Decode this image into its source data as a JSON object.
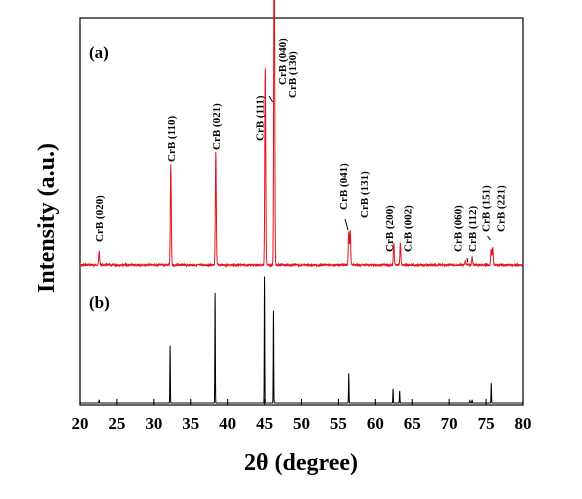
{
  "chart_data": {
    "type": "line",
    "xlabel": "2θ (degree)",
    "ylabel": "Intensity (a.u.)",
    "xlim": [
      20,
      80
    ],
    "x_ticks": [
      20,
      25,
      30,
      35,
      40,
      45,
      50,
      55,
      60,
      65,
      70,
      75,
      80
    ],
    "grid": false,
    "legend": "none",
    "panels": [
      {
        "label": "(a)",
        "color": "#e0141e",
        "description": "experimental diffraction pattern",
        "peaks": [
          {
            "x": 22.6,
            "intensity": 0.07,
            "label": "CrB (020)"
          },
          {
            "x": 32.3,
            "intensity": 0.5,
            "label": "CrB (110)"
          },
          {
            "x": 38.4,
            "intensity": 0.57,
            "label": "CrB (021)"
          },
          {
            "x": 45.1,
            "intensity": 1.0,
            "label": "CrB (111)"
          },
          {
            "x": 46.3,
            "intensity": 0.92,
            "label": "CrB (040)"
          },
          {
            "x": 46.3,
            "intensity": 0.92,
            "label": "CrB (130)"
          },
          {
            "x": 56.4,
            "intensity": 0.17,
            "label": "CrB (041)"
          },
          {
            "x": 56.6,
            "intensity": 0.17,
            "label": "CrB (131)"
          },
          {
            "x": 62.5,
            "intensity": 0.11,
            "label": "CrB (200)"
          },
          {
            "x": 63.4,
            "intensity": 0.11,
            "label": "CrB (002)"
          },
          {
            "x": 72.2,
            "intensity": 0.02,
            "label": "CrB (060)"
          },
          {
            "x": 73.1,
            "intensity": 0.04,
            "label": "CrB (112)"
          },
          {
            "x": 75.7,
            "intensity": 0.08,
            "label": "CrB (151)"
          },
          {
            "x": 75.9,
            "intensity": 0.09,
            "label": "CrB (221)"
          }
        ]
      },
      {
        "label": "(b)",
        "color": "#000000",
        "description": "reference stick pattern",
        "peaks": [
          {
            "x": 22.6,
            "intensity": 0.03
          },
          {
            "x": 32.2,
            "intensity": 0.52
          },
          {
            "x": 38.3,
            "intensity": 1.0
          },
          {
            "x": 45.0,
            "intensity": 1.15
          },
          {
            "x": 46.2,
            "intensity": 0.84
          },
          {
            "x": 56.4,
            "intensity": 0.27
          },
          {
            "x": 62.4,
            "intensity": 0.13
          },
          {
            "x": 63.3,
            "intensity": 0.11
          },
          {
            "x": 72.8,
            "intensity": 0.02
          },
          {
            "x": 73.1,
            "intensity": 0.03
          },
          {
            "x": 75.7,
            "intensity": 0.18
          }
        ]
      }
    ]
  }
}
